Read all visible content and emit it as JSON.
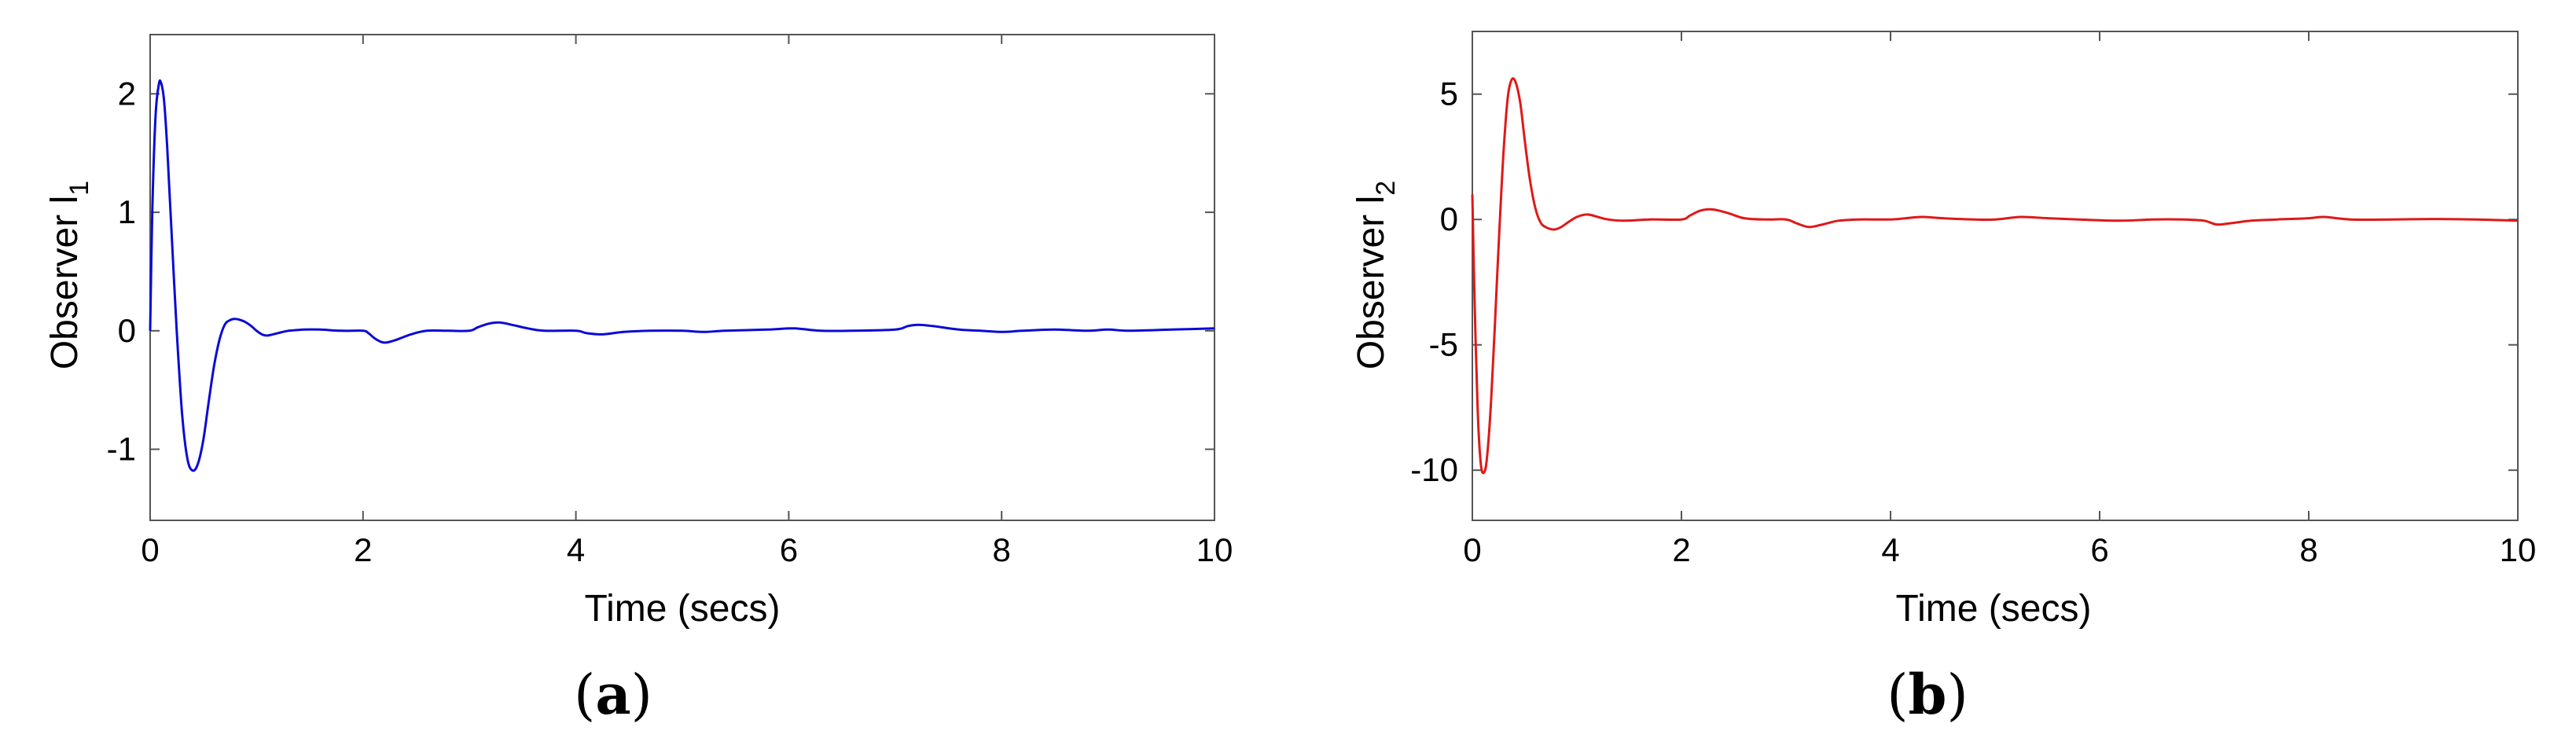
{
  "chart_data": [
    {
      "type": "line",
      "caption_letter": "a",
      "xlabel": "Time (secs)",
      "ylabel": "Observer l",
      "ylabel_sub": "1",
      "xlim": [
        0,
        10
      ],
      "ylim": [
        -1.6,
        2.5
      ],
      "xticks": [
        0,
        2,
        4,
        6,
        8,
        10
      ],
      "xtick_labels": [
        "0",
        "2",
        "4",
        "6",
        "8",
        "10"
      ],
      "yticks": [
        -1,
        0,
        1,
        2
      ],
      "ytick_labels": [
        "-1",
        "0",
        "1",
        "2"
      ],
      "grid": false,
      "series": [
        {
          "color": "#0a0ad6",
          "points": [
            [
              0,
              0
            ],
            [
              0.02,
              1.0
            ],
            [
              0.05,
              1.8
            ],
            [
              0.08,
              2.07
            ],
            [
              0.1,
              2.1
            ],
            [
              0.13,
              1.95
            ],
            [
              0.16,
              1.55
            ],
            [
              0.2,
              0.85
            ],
            [
              0.25,
              0.0
            ],
            [
              0.3,
              -0.7
            ],
            [
              0.35,
              -1.08
            ],
            [
              0.4,
              -1.18
            ],
            [
              0.45,
              -1.12
            ],
            [
              0.5,
              -0.92
            ],
            [
              0.55,
              -0.6
            ],
            [
              0.6,
              -0.3
            ],
            [
              0.65,
              -0.08
            ],
            [
              0.7,
              0.05
            ],
            [
              0.75,
              0.09
            ],
            [
              0.8,
              0.1
            ],
            [
              0.88,
              0.08
            ],
            [
              0.95,
              0.04
            ],
            [
              1.0,
              0.0
            ],
            [
              1.05,
              -0.03
            ],
            [
              1.1,
              -0.04
            ],
            [
              1.2,
              -0.02
            ],
            [
              1.3,
              0.0
            ],
            [
              1.45,
              0.01
            ],
            [
              1.6,
              0.01
            ],
            [
              1.8,
              0.0
            ],
            [
              2.0,
              0.0
            ],
            [
              2.05,
              -0.02
            ],
            [
              2.12,
              -0.07
            ],
            [
              2.2,
              -0.1
            ],
            [
              2.3,
              -0.08
            ],
            [
              2.45,
              -0.03
            ],
            [
              2.6,
              0.0
            ],
            [
              2.8,
              0.0
            ],
            [
              3.0,
              0.0
            ],
            [
              3.08,
              0.03
            ],
            [
              3.18,
              0.06
            ],
            [
              3.28,
              0.07
            ],
            [
              3.4,
              0.05
            ],
            [
              3.55,
              0.02
            ],
            [
              3.7,
              0.0
            ],
            [
              4.0,
              0.0
            ],
            [
              4.1,
              -0.02
            ],
            [
              4.25,
              -0.03
            ],
            [
              4.45,
              -0.01
            ],
            [
              4.7,
              0.0
            ],
            [
              5.0,
              0.0
            ],
            [
              5.2,
              -0.01
            ],
            [
              5.4,
              0.0
            ],
            [
              5.8,
              0.01
            ],
            [
              6.05,
              0.02
            ],
            [
              6.3,
              0.0
            ],
            [
              6.6,
              0.0
            ],
            [
              7.0,
              0.01
            ],
            [
              7.12,
              0.04
            ],
            [
              7.22,
              0.05
            ],
            [
              7.35,
              0.04
            ],
            [
              7.6,
              0.01
            ],
            [
              7.8,
              0.0
            ],
            [
              8.0,
              -0.01
            ],
            [
              8.2,
              0.0
            ],
            [
              8.5,
              0.01
            ],
            [
              8.8,
              0.0
            ],
            [
              9.0,
              0.01
            ],
            [
              9.2,
              0.0
            ],
            [
              9.6,
              0.01
            ],
            [
              10,
              0.02
            ]
          ]
        }
      ]
    },
    {
      "type": "line",
      "caption_letter": "b",
      "xlabel": "Time (secs)",
      "ylabel": "Observer l",
      "ylabel_sub": "2",
      "xlim": [
        0,
        10
      ],
      "ylim": [
        -12,
        7.5
      ],
      "xticks": [
        0,
        2,
        4,
        6,
        8,
        10
      ],
      "xtick_labels": [
        "0",
        "2",
        "4",
        "6",
        "8",
        "10"
      ],
      "yticks": [
        -10,
        -5,
        0,
        5
      ],
      "ytick_labels": [
        "-10",
        "-5",
        "0",
        "5"
      ],
      "grid": false,
      "series": [
        {
          "color": "#e01818",
          "points": [
            [
              0,
              1.0
            ],
            [
              0.02,
              -3.0
            ],
            [
              0.05,
              -7.5
            ],
            [
              0.08,
              -9.7
            ],
            [
              0.11,
              -10.1
            ],
            [
              0.14,
              -9.5
            ],
            [
              0.18,
              -7.2
            ],
            [
              0.22,
              -3.8
            ],
            [
              0.26,
              -0.3
            ],
            [
              0.3,
              2.8
            ],
            [
              0.34,
              4.9
            ],
            [
              0.38,
              5.6
            ],
            [
              0.42,
              5.4
            ],
            [
              0.46,
              4.6
            ],
            [
              0.5,
              3.2
            ],
            [
              0.55,
              1.6
            ],
            [
              0.6,
              0.5
            ],
            [
              0.65,
              -0.1
            ],
            [
              0.7,
              -0.3
            ],
            [
              0.78,
              -0.4
            ],
            [
              0.85,
              -0.3
            ],
            [
              0.92,
              -0.1
            ],
            [
              1.0,
              0.1
            ],
            [
              1.1,
              0.2
            ],
            [
              1.2,
              0.1
            ],
            [
              1.3,
              0.0
            ],
            [
              1.45,
              -0.05
            ],
            [
              1.7,
              0.0
            ],
            [
              2.0,
              0.0
            ],
            [
              2.08,
              0.15
            ],
            [
              2.18,
              0.35
            ],
            [
              2.3,
              0.4
            ],
            [
              2.45,
              0.25
            ],
            [
              2.6,
              0.05
            ],
            [
              2.8,
              0.0
            ],
            [
              3.0,
              0.0
            ],
            [
              3.1,
              -0.15
            ],
            [
              3.22,
              -0.3
            ],
            [
              3.35,
              -0.2
            ],
            [
              3.5,
              -0.05
            ],
            [
              3.7,
              0.0
            ],
            [
              4.0,
              0.0
            ],
            [
              4.15,
              0.05
            ],
            [
              4.3,
              0.1
            ],
            [
              4.5,
              0.05
            ],
            [
              4.8,
              0.0
            ],
            [
              5.0,
              0.0
            ],
            [
              5.25,
              0.1
            ],
            [
              5.5,
              0.05
            ],
            [
              5.8,
              0.0
            ],
            [
              6.2,
              -0.05
            ],
            [
              6.5,
              0.0
            ],
            [
              6.8,
              0.0
            ],
            [
              7.0,
              -0.05
            ],
            [
              7.12,
              -0.2
            ],
            [
              7.25,
              -0.15
            ],
            [
              7.45,
              -0.05
            ],
            [
              7.7,
              0.0
            ],
            [
              8.0,
              0.05
            ],
            [
              8.15,
              0.1
            ],
            [
              8.4,
              0.0
            ],
            [
              8.8,
              0.0
            ],
            [
              9.2,
              0.02
            ],
            [
              9.6,
              0.0
            ],
            [
              10,
              -0.05
            ]
          ]
        }
      ]
    }
  ]
}
